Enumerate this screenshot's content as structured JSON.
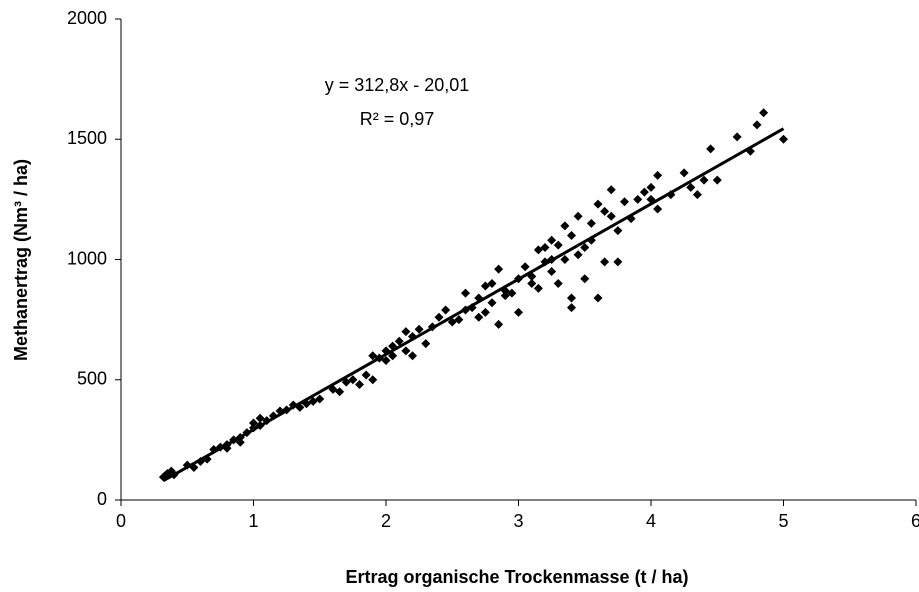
{
  "chart_data": {
    "type": "scatter",
    "x_label": "Ertrag organische Trockenmasse (t / ha)",
    "y_label": "Methanertrag (Nm³ / ha)",
    "xlim": [
      0,
      6
    ],
    "xticks": [
      0,
      1,
      2,
      3,
      4,
      5,
      6
    ],
    "ylim": [
      0,
      2000
    ],
    "yticks": [
      0,
      500,
      1000,
      1500,
      2000
    ],
    "color": "#000000",
    "series": [
      {
        "name": "Methanertrag",
        "color": "#000000",
        "x": [
          0.32,
          0.35,
          0.38,
          0.33,
          0.4,
          0.5,
          0.55,
          0.6,
          0.65,
          0.7,
          0.75,
          0.8,
          0.8,
          0.85,
          0.9,
          0.9,
          0.95,
          1.0,
          1.0,
          1.05,
          1.05,
          1.1,
          1.15,
          1.2,
          1.25,
          1.3,
          1.35,
          1.4,
          1.45,
          1.5,
          1.6,
          1.65,
          1.7,
          1.75,
          1.8,
          1.85,
          1.9,
          1.9,
          1.95,
          2.0,
          2.0,
          2.05,
          2.05,
          2.1,
          2.15,
          2.15,
          2.2,
          2.2,
          2.25,
          2.3,
          2.35,
          2.4,
          2.45,
          2.5,
          2.55,
          2.6,
          2.6,
          2.65,
          2.7,
          2.7,
          2.75,
          2.75,
          2.8,
          2.8,
          2.85,
          2.85,
          2.9,
          2.95,
          3.0,
          3.0,
          3.05,
          3.1,
          3.15,
          3.2,
          3.2,
          3.25,
          3.25,
          3.3,
          3.3,
          3.35,
          3.4,
          3.4,
          3.45,
          3.45,
          3.4,
          3.5,
          3.55,
          3.6,
          3.6,
          3.65,
          3.65,
          3.7,
          3.7,
          3.75,
          3.75,
          3.8,
          3.85,
          3.9,
          3.95,
          4.0,
          4.0,
          4.05,
          4.05,
          4.15,
          4.25,
          4.3,
          4.35,
          4.4,
          4.45,
          4.5,
          4.65,
          4.75,
          4.8,
          4.85,
          5.0,
          3.35,
          3.25,
          3.15,
          3.1,
          2.9,
          3.5,
          3.55
        ],
        "values": [
          95,
          110,
          120,
          100,
          105,
          145,
          135,
          160,
          170,
          210,
          220,
          230,
          215,
          250,
          260,
          240,
          280,
          300,
          320,
          340,
          310,
          330,
          350,
          370,
          375,
          395,
          385,
          400,
          410,
          420,
          460,
          450,
          490,
          500,
          480,
          520,
          500,
          600,
          590,
          620,
          580,
          640,
          600,
          660,
          620,
          700,
          600,
          680,
          710,
          650,
          720,
          760,
          790,
          740,
          750,
          860,
          790,
          800,
          840,
          760,
          890,
          780,
          900,
          820,
          730,
          960,
          850,
          860,
          920,
          780,
          970,
          930,
          880,
          1050,
          990,
          1080,
          950,
          1060,
          900,
          1000,
          1100,
          840,
          1180,
          1020,
          800,
          1050,
          1150,
          1230,
          840,
          1200,
          990,
          1290,
          1180,
          1120,
          990,
          1240,
          1170,
          1250,
          1280,
          1300,
          1250,
          1350,
          1210,
          1270,
          1360,
          1300,
          1270,
          1330,
          1460,
          1330,
          1510,
          1450,
          1560,
          1610,
          1500,
          1140,
          1000,
          1040,
          900,
          870,
          920,
          1080
        ]
      }
    ],
    "trendline": {
      "equation": "y = 312,8x - 20,01",
      "r_squared_label": "R² = 0,97",
      "slope": 312.8,
      "intercept": -20.01,
      "x": [
        0.32,
        5.0
      ]
    }
  }
}
